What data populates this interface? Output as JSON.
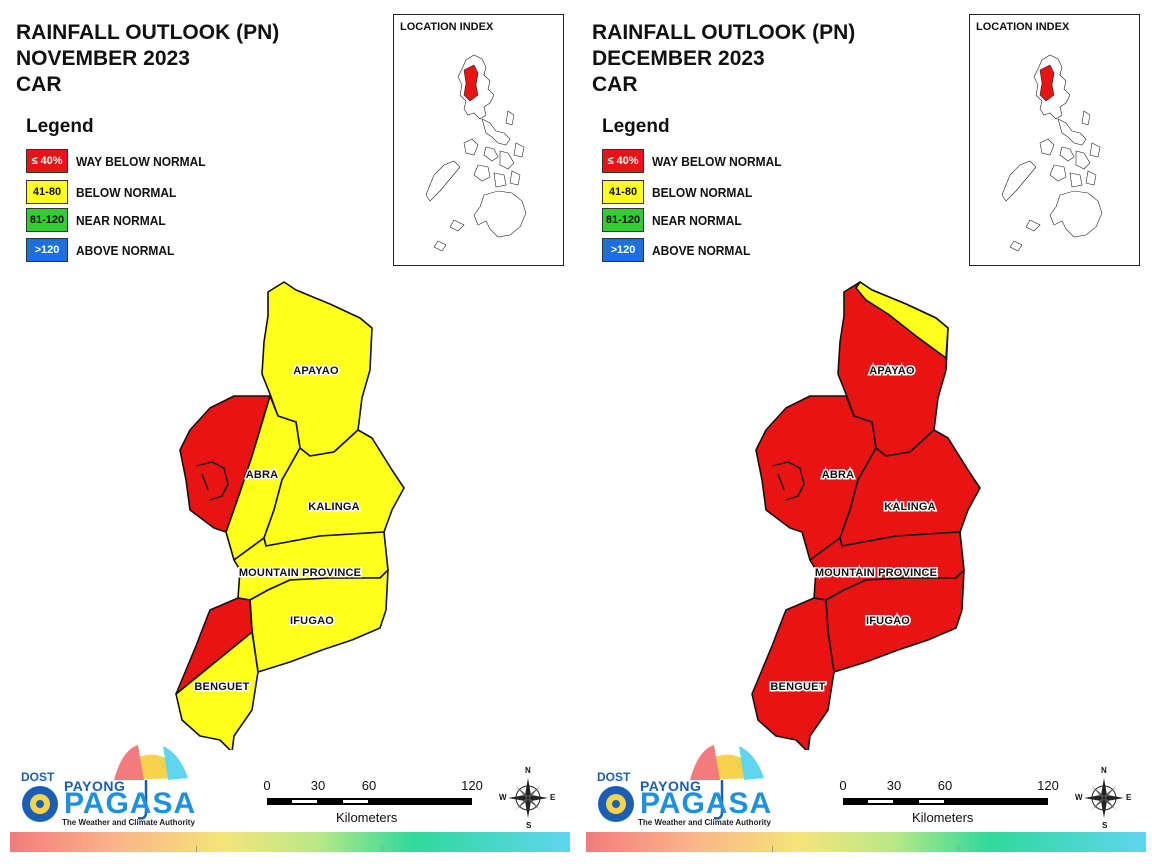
{
  "legend": {
    "title": "Legend",
    "items": [
      {
        "code": "≤ 40%",
        "label": "WAY BELOW NORMAL",
        "color": "#e81414",
        "text_color": "#ffffff"
      },
      {
        "code": "41-80",
        "label": "BELOW NORMAL",
        "color": "#ffff1e",
        "text_color": "#111111"
      },
      {
        "code": "81-120",
        "label": "NEAR NORMAL",
        "color": "#33cc33",
        "text_color": "#111111"
      },
      {
        "code": ">120",
        "label": "ABOVE NORMAL",
        "color": "#1d6fe0",
        "text_color": "#ffffff"
      }
    ]
  },
  "location_index_title": "LOCATION INDEX",
  "provinces": {
    "apayao": "APAYAO",
    "abra": "ABRA",
    "kalinga": "KALINGA",
    "mountain_province": "MOUNTAIN PROVINCE",
    "ifugao": "IFUGAO",
    "benguet": "BENGUET"
  },
  "maps": [
    {
      "title_lines": [
        "RAINFALL OUTLOOK (PN)",
        "NOVEMBER 2023",
        "CAR"
      ],
      "categories": {
        "apayao": "BELOW NORMAL",
        "abra": "WAY BELOW NORMAL (west) / BELOW NORMAL (east)",
        "kalinga": "BELOW NORMAL",
        "mountain_province": "BELOW NORMAL",
        "ifugao": "BELOW NORMAL",
        "benguet": "WAY BELOW NORMAL (north-west) / BELOW NORMAL (south)"
      }
    },
    {
      "title_lines": [
        "RAINFALL OUTLOOK (PN)",
        "DECEMBER 2023",
        "CAR"
      ],
      "categories": {
        "apayao": "WAY BELOW NORMAL (north-east tip BELOW NORMAL)",
        "abra": "WAY BELOW NORMAL",
        "kalinga": "WAY BELOW NORMAL",
        "mountain_province": "WAY BELOW NORMAL",
        "ifugao": "WAY BELOW NORMAL",
        "benguet": "WAY BELOW NORMAL"
      }
    }
  ],
  "scale": {
    "ticks": [
      "0",
      "30",
      "60",
      "120"
    ],
    "unit": "Kilometers"
  },
  "compass": {
    "n": "N",
    "s": "S",
    "e": "E",
    "w": "W"
  },
  "logo": {
    "dost": "DOST",
    "payong": "PAYONG",
    "pagasa": "PAGASA",
    "tagline": "The Weather and Climate Authority"
  },
  "colors": {
    "red": "#e81414",
    "yellow": "#ffff1e",
    "green": "#33cc33",
    "blue": "#1d6fe0"
  }
}
